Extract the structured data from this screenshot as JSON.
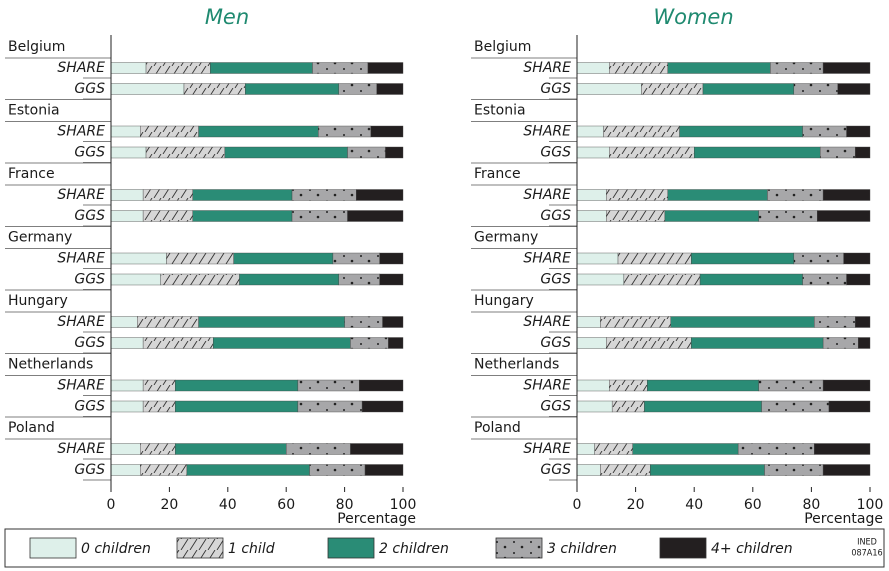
{
  "chart_data": [
    {
      "type": "bar",
      "orientation": "horizontal",
      "stacked": true,
      "title": "Men",
      "groups": [
        "Belgium",
        "Estonia",
        "France",
        "Germany",
        "Hungary",
        "Netherlands",
        "Poland"
      ],
      "categories": [
        "SHARE",
        "GGS",
        "SHARE",
        "GGS",
        "SHARE",
        "GGS",
        "SHARE",
        "GGS",
        "SHARE",
        "GGS",
        "SHARE",
        "GGS",
        "SHARE",
        "GGS"
      ],
      "xlabel": "Percentage",
      "xlim": [
        0,
        100
      ],
      "xticks": [
        0,
        20,
        40,
        60,
        80,
        100
      ],
      "series": [
        {
          "name": "0 children",
          "color": "#def0ea",
          "values": [
            12,
            25,
            10,
            12,
            11,
            11,
            19,
            17,
            9,
            11,
            11,
            11,
            10,
            10
          ]
        },
        {
          "name": "1 child",
          "color": "#d6d6d6",
          "pattern": "hatch",
          "values": [
            22,
            21,
            20,
            27,
            17,
            17,
            23,
            27,
            21,
            24,
            11,
            11,
            12,
            16
          ]
        },
        {
          "name": "2 children",
          "color": "#2a8c76",
          "values": [
            35,
            32,
            41,
            42,
            34,
            34,
            34,
            34,
            50,
            47,
            42,
            42,
            38,
            42
          ]
        },
        {
          "name": "3 children",
          "color": "#a7a7a9",
          "pattern": "dots",
          "values": [
            19,
            13,
            18,
            13,
            22,
            19,
            16,
            14,
            13,
            13,
            21,
            22,
            22,
            19
          ]
        },
        {
          "name": "4+ children",
          "color": "#231f20",
          "values": [
            12,
            9,
            11,
            6,
            16,
            19,
            8,
            8,
            7,
            5,
            15,
            14,
            18,
            13
          ]
        }
      ]
    },
    {
      "type": "bar",
      "orientation": "horizontal",
      "stacked": true,
      "title": "Women",
      "groups": [
        "Belgium",
        "Estonia",
        "France",
        "Germany",
        "Hungary",
        "Netherlands",
        "Poland"
      ],
      "categories": [
        "SHARE",
        "GGS",
        "SHARE",
        "GGS",
        "SHARE",
        "GGS",
        "SHARE",
        "GGS",
        "SHARE",
        "GGS",
        "SHARE",
        "GGS",
        "SHARE",
        "GGS"
      ],
      "xlabel": "Percentage",
      "xlim": [
        0,
        100
      ],
      "xticks": [
        0,
        20,
        40,
        60,
        80,
        100
      ],
      "series": [
        {
          "color": "#def0ea",
          "values": [
            11,
            22,
            9,
            11,
            10,
            10,
            14,
            16,
            8,
            10,
            11,
            12,
            6,
            8
          ]
        },
        {
          "color": "#d6d6d6",
          "pattern": "hatch",
          "values": [
            20,
            21,
            26,
            29,
            21,
            20,
            25,
            26,
            24,
            29,
            13,
            11,
            13,
            17
          ]
        },
        {
          "color": "#2a8c76",
          "values": [
            35,
            31,
            42,
            43,
            34,
            32,
            35,
            35,
            49,
            45,
            38,
            40,
            36,
            39
          ]
        },
        {
          "color": "#a7a7a9",
          "pattern": "dots",
          "values": [
            18,
            15,
            15,
            12,
            19,
            20,
            17,
            15,
            14,
            12,
            22,
            23,
            26,
            20
          ]
        },
        {
          "color": "#231f20",
          "values": [
            16,
            11,
            8,
            5,
            16,
            18,
            9,
            8,
            5,
            4,
            16,
            14,
            19,
            16
          ]
        }
      ]
    }
  ],
  "credit": [
    "INED",
    "087A16"
  ]
}
